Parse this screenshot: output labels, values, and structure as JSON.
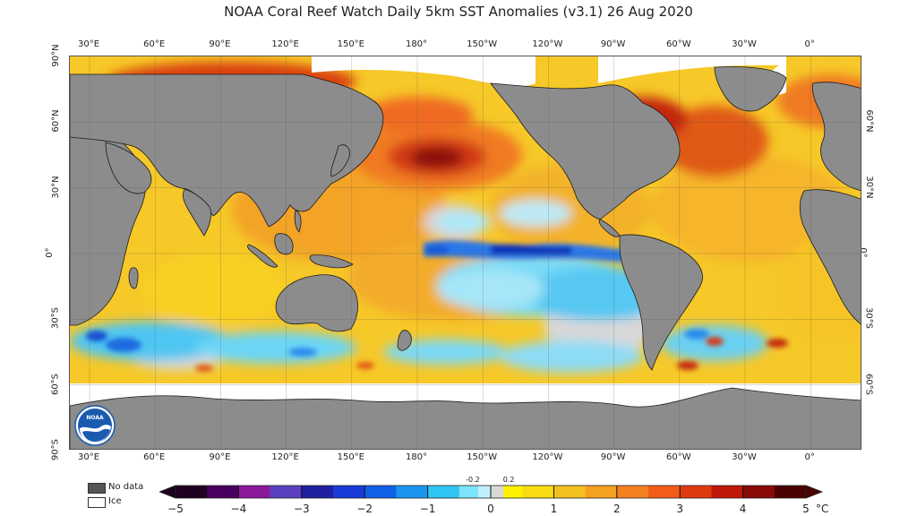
{
  "title": "NOAA Coral Reef Watch Daily 5km SST Anomalies  (v3.1)   26 Aug 2020",
  "map": {
    "projection": "equirectangular",
    "longitude_range": [
      20,
      380
    ],
    "latitude_range": [
      -90,
      90
    ],
    "top_ticks": [
      "30°E",
      "60°E",
      "90°E",
      "120°E",
      "150°E",
      "180°",
      "150°W",
      "120°W",
      "90°W",
      "60°W",
      "30°W",
      "0°"
    ],
    "bottom_ticks": [
      "30°E",
      "60°E",
      "90°E",
      "120°E",
      "150°E",
      "180°",
      "150°W",
      "120°W",
      "90°W",
      "60°W",
      "30°W",
      "0°"
    ],
    "left_ticks": [
      "90°N",
      "60°N",
      "30°N",
      "0°",
      "30°S",
      "60°S",
      "90°S"
    ],
    "right_ticks": [
      "60°N",
      "30°N",
      "0°",
      "30°S",
      "60°S"
    ],
    "colors": {
      "land": "#8c8c8c",
      "no_data": "#5a5a5a",
      "ice": "#ffffff",
      "frame": "#555555"
    }
  },
  "legend": {
    "no_data_label": "No data",
    "ice_label": "Ice",
    "no_data_color": "#555555",
    "ice_color": "#ffffff"
  },
  "colorbar": {
    "labels": [
      "−5",
      "−4",
      "−3",
      "−2",
      "−1",
      "0",
      "1",
      "2",
      "3",
      "4",
      "5"
    ],
    "small_labels": [
      "-0.2",
      "0.2"
    ],
    "unit": "°C",
    "range": [
      -5,
      5
    ],
    "stops": [
      {
        "v": -5,
        "color": "#1e0020"
      },
      {
        "v": -4.5,
        "color": "#4a0060"
      },
      {
        "v": -4,
        "color": "#8a1a9a"
      },
      {
        "v": -3.5,
        "color": "#5a3fc0"
      },
      {
        "v": -3,
        "color": "#2020a0"
      },
      {
        "v": -2.5,
        "color": "#1a3ad8"
      },
      {
        "v": -2,
        "color": "#1060e8"
      },
      {
        "v": -1.5,
        "color": "#1a96f0"
      },
      {
        "v": -1,
        "color": "#30c4f4"
      },
      {
        "v": -0.5,
        "color": "#7ae4fa"
      },
      {
        "v": -0.2,
        "color": "#bfeffa"
      },
      {
        "v": 0,
        "color": "#d8d8d8"
      },
      {
        "v": 0.2,
        "color": "#d8d8d8"
      },
      {
        "v": 0.5,
        "color": "#fff200"
      },
      {
        "v": 1,
        "color": "#f8dc10"
      },
      {
        "v": 1.5,
        "color": "#f4c020"
      },
      {
        "v": 2,
        "color": "#f4a020"
      },
      {
        "v": 2.5,
        "color": "#f48020"
      },
      {
        "v": 3,
        "color": "#f25d18"
      },
      {
        "v": 3.5,
        "color": "#e03a10"
      },
      {
        "v": 4,
        "color": "#c01808"
      },
      {
        "v": 4.5,
        "color": "#8a0a08"
      },
      {
        "v": 5,
        "color": "#4a0000"
      }
    ]
  },
  "logo": {
    "text": "NOAA",
    "color": "#1a5bb0"
  }
}
